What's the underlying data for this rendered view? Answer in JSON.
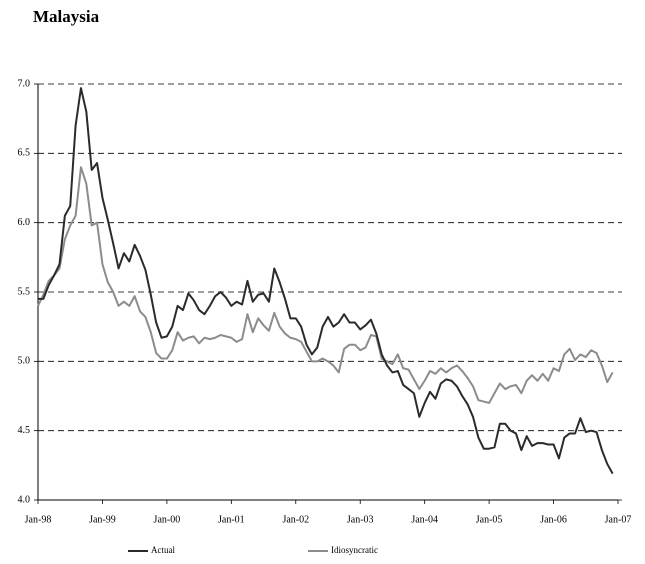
{
  "chart_data": {
    "type": "line",
    "title": "Malaysia",
    "categories": [
      "Jan-98",
      null,
      null,
      null,
      null,
      null,
      null,
      null,
      null,
      null,
      null,
      null,
      "Jan-99",
      null,
      null,
      null,
      null,
      null,
      null,
      null,
      null,
      null,
      null,
      null,
      "Jan-00",
      null,
      null,
      null,
      null,
      null,
      null,
      null,
      null,
      null,
      null,
      null,
      "Jan-01",
      null,
      null,
      null,
      null,
      null,
      null,
      null,
      null,
      null,
      null,
      null,
      "Jan-02",
      null,
      null,
      null,
      null,
      null,
      null,
      null,
      null,
      null,
      null,
      null,
      "Jan-03",
      null,
      null,
      null,
      null,
      null,
      null,
      null,
      null,
      null,
      null,
      null,
      "Jan-04",
      null,
      null,
      null,
      null,
      null,
      null,
      null,
      null,
      null,
      null,
      null,
      "Jan-05",
      null,
      null,
      null,
      null,
      null,
      null,
      null,
      null,
      null,
      null,
      null,
      "Jan-06",
      null,
      null,
      null,
      null,
      null,
      null,
      null,
      null,
      null,
      null,
      null,
      "Jan-07"
    ],
    "series": [
      {
        "name": "Actual",
        "color": "#2b2b2b",
        "values": [
          5.45,
          5.45,
          5.55,
          5.62,
          5.7,
          6.05,
          6.12,
          6.7,
          6.97,
          6.8,
          6.38,
          6.43,
          6.18,
          6.02,
          5.85,
          5.67,
          5.78,
          5.72,
          5.84,
          5.76,
          5.66,
          5.48,
          5.28,
          5.17,
          5.18,
          5.25,
          5.4,
          5.37,
          5.49,
          5.44,
          5.37,
          5.34,
          5.4,
          5.47,
          5.5,
          5.46,
          5.4,
          5.43,
          5.41,
          5.58,
          5.43,
          5.48,
          5.49,
          5.43,
          5.67,
          5.57,
          5.45,
          5.31,
          5.31,
          5.25,
          5.12,
          5.05,
          5.1,
          5.25,
          5.32,
          5.25,
          5.28,
          5.34,
          5.28,
          5.28,
          5.23,
          5.26,
          5.3,
          5.2,
          5.05,
          4.97,
          4.92,
          4.93,
          4.83,
          4.8,
          4.77,
          4.6,
          4.7,
          4.78,
          4.73,
          4.84,
          4.87,
          4.86,
          4.82,
          4.75,
          4.69,
          4.6,
          4.45,
          4.37,
          4.37,
          4.38,
          4.55,
          4.55,
          4.5,
          4.48,
          4.36,
          4.46,
          4.39,
          4.41,
          4.41,
          4.4,
          4.4,
          4.3,
          4.45,
          4.48,
          4.48,
          4.59,
          4.49,
          4.5,
          4.49,
          4.36,
          4.26,
          4.19,
          null
        ]
      },
      {
        "name": "Idiosyncratic",
        "color": "#8c8c8c",
        "values": [
          5.4,
          5.48,
          5.58,
          5.62,
          5.67,
          5.88,
          5.98,
          6.05,
          6.4,
          6.28,
          5.98,
          6.0,
          5.7,
          5.57,
          5.5,
          5.4,
          5.43,
          5.4,
          5.47,
          5.36,
          5.32,
          5.21,
          5.06,
          5.02,
          5.02,
          5.08,
          5.21,
          5.15,
          5.17,
          5.18,
          5.13,
          5.17,
          5.16,
          5.17,
          5.19,
          5.18,
          5.17,
          5.14,
          5.16,
          5.34,
          5.21,
          5.31,
          5.26,
          5.22,
          5.35,
          5.25,
          5.2,
          5.17,
          5.16,
          5.14,
          5.07,
          5.0,
          5.0,
          5.02,
          5.0,
          4.97,
          4.92,
          5.09,
          5.12,
          5.12,
          5.08,
          5.1,
          5.19,
          5.18,
          5.02,
          5.0,
          4.98,
          5.05,
          4.95,
          4.94,
          4.87,
          4.8,
          4.86,
          4.93,
          4.91,
          4.95,
          4.92,
          4.95,
          4.97,
          4.93,
          4.88,
          4.82,
          4.72,
          4.71,
          4.7,
          4.77,
          4.84,
          4.8,
          4.82,
          4.83,
          4.77,
          4.86,
          4.9,
          4.86,
          4.91,
          4.86,
          4.95,
          4.93,
          5.05,
          5.09,
          5.01,
          5.05,
          5.03,
          5.08,
          5.06,
          4.97,
          4.85,
          4.92,
          null
        ]
      }
    ],
    "ylim": [
      4,
      7
    ],
    "yticks": [
      {
        "value": 4,
        "label": "4.0"
      },
      4.5,
      {
        "value": 5,
        "label": "5.0"
      },
      5.5,
      {
        "value": 6,
        "label": "6.0"
      },
      6.5,
      {
        "value": 7,
        "label": "7.0"
      }
    ],
    "grid": true,
    "legend": "bottom"
  }
}
